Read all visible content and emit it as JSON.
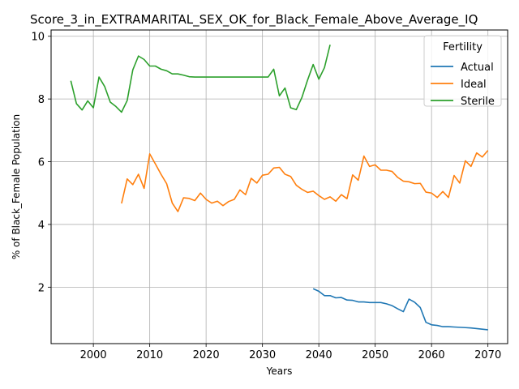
{
  "chart_data": {
    "type": "line",
    "title": "Score_3_in_EXTRAMARITAL_SEX_OK_for_Black_Female_Above_Average_IQ",
    "xlabel": "Years",
    "ylabel": "% of Black_Female Population",
    "xlim": [
      1992.5,
      2073.5
    ],
    "ylim": [
      0.2,
      10.2
    ],
    "xticks": [
      2000,
      2010,
      2020,
      2030,
      2040,
      2050,
      2060,
      2070
    ],
    "yticks": [
      2,
      4,
      6,
      8,
      10
    ],
    "grid": true,
    "legend": {
      "title": "Fertility",
      "placement": "top-right"
    },
    "series": [
      {
        "name": "Actual",
        "color": "#1f77b4",
        "x": [
          2039,
          2040,
          2041,
          2042,
          2043,
          2044,
          2045,
          2046,
          2047,
          2048,
          2049,
          2050,
          2051,
          2052,
          2053,
          2054,
          2055,
          2056,
          2057,
          2058,
          2059,
          2060,
          2061,
          2062,
          2063,
          2064,
          2065,
          2066,
          2067,
          2068,
          2069,
          2070
        ],
        "y": [
          1.95,
          1.87,
          1.73,
          1.73,
          1.66,
          1.67,
          1.59,
          1.58,
          1.53,
          1.53,
          1.51,
          1.51,
          1.51,
          1.47,
          1.41,
          1.31,
          1.22,
          1.62,
          1.52,
          1.35,
          0.88,
          0.8,
          0.78,
          0.74,
          0.74,
          0.73,
          0.72,
          0.71,
          0.7,
          0.68,
          0.66,
          0.64
        ]
      },
      {
        "name": "Ideal",
        "color": "#ff7f0e",
        "x": [
          2005,
          2006,
          2007,
          2008,
          2009,
          2010,
          2011,
          2012,
          2013,
          2014,
          2015,
          2016,
          2017,
          2018,
          2019,
          2020,
          2021,
          2022,
          2023,
          2024,
          2025,
          2026,
          2027,
          2028,
          2029,
          2030,
          2031,
          2032,
          2033,
          2034,
          2035,
          2036,
          2037,
          2038,
          2039,
          2040,
          2041,
          2042,
          2043,
          2044,
          2045,
          2046,
          2047,
          2048,
          2049,
          2050,
          2051,
          2052,
          2053,
          2054,
          2055,
          2056,
          2057,
          2058,
          2059,
          2060,
          2061,
          2062,
          2063,
          2064,
          2065,
          2066,
          2067,
          2068,
          2069,
          2070
        ],
        "y": [
          4.67,
          5.45,
          5.27,
          5.6,
          5.15,
          6.25,
          5.93,
          5.6,
          5.3,
          4.68,
          4.41,
          4.85,
          4.83,
          4.76,
          5.0,
          4.8,
          4.68,
          4.74,
          4.6,
          4.73,
          4.8,
          5.1,
          4.95,
          5.47,
          5.32,
          5.57,
          5.6,
          5.8,
          5.82,
          5.6,
          5.53,
          5.25,
          5.12,
          5.02,
          5.06,
          4.92,
          4.8,
          4.88,
          4.74,
          4.95,
          4.82,
          5.58,
          5.41,
          6.18,
          5.85,
          5.9,
          5.73,
          5.73,
          5.69,
          5.5,
          5.38,
          5.36,
          5.3,
          5.31,
          5.03,
          5.0,
          4.86,
          5.05,
          4.86,
          5.56,
          5.32,
          6.03,
          5.85,
          6.28,
          6.15,
          6.36
        ]
      },
      {
        "name": "Sterile",
        "color": "#2ca02c",
        "x": [
          1996,
          1997,
          1998,
          1999,
          2000,
          2001,
          2002,
          2003,
          2004,
          2005,
          2006,
          2007,
          2008,
          2009,
          2010,
          2011,
          2012,
          2013,
          2014,
          2015,
          2016,
          2017,
          2018,
          2019,
          2020,
          2021,
          2022,
          2023,
          2024,
          2025,
          2026,
          2027,
          2028,
          2029,
          2030,
          2031,
          2032,
          2033,
          2034,
          2035,
          2036,
          2037,
          2038,
          2039,
          2040,
          2041,
          2042
        ],
        "y": [
          8.58,
          7.85,
          7.65,
          7.94,
          7.72,
          8.7,
          8.4,
          7.9,
          7.76,
          7.58,
          7.95,
          8.93,
          9.37,
          9.26,
          9.05,
          9.05,
          8.95,
          8.9,
          8.8,
          8.8,
          8.76,
          8.71,
          8.7,
          8.7,
          8.7,
          8.7,
          8.7,
          8.7,
          8.7,
          8.7,
          8.7,
          8.7,
          8.7,
          8.7,
          8.7,
          8.7,
          8.95,
          8.1,
          8.35,
          7.72,
          7.66,
          8.05,
          8.6,
          9.1,
          8.63,
          9.0,
          9.73
        ]
      }
    ]
  }
}
